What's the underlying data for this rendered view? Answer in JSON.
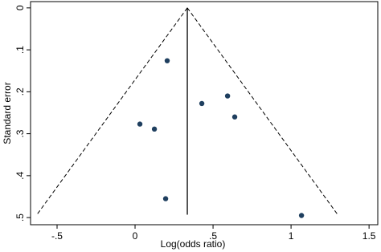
{
  "chart_data": {
    "type": "scatter",
    "x_label": "Log(odds ratio)",
    "y_label": "Standard error",
    "x": [
      0.206,
      0.428,
      0.593,
      0.639,
      0.031,
      0.124,
      0.196,
      1.067
    ],
    "y": [
      0.126,
      0.228,
      0.21,
      0.26,
      0.277,
      0.289,
      0.455,
      0.495
    ],
    "color": "#1f3f5f",
    "xlim": [
      -0.67,
      1.556
    ],
    "ylim": [
      -0.015,
      0.517
    ],
    "y_inverted": true,
    "xticks": [
      {
        "value": -0.5,
        "label": "-.5"
      },
      0,
      {
        "value": 0.5,
        "label": ".5"
      },
      1,
      1.5
    ],
    "yticks": [
      0,
      {
        "value": 0.1,
        "label": ".1"
      },
      {
        "value": 0.2,
        "label": ".2"
      },
      {
        "value": 0.3,
        "label": ".3"
      },
      {
        "value": 0.4,
        "label": ".4"
      },
      {
        "value": 0.5,
        "label": ".5"
      }
    ],
    "reference_line": 0.335,
    "funnel": {
      "se": 0.493,
      "x_low": -0.629,
      "x_high": 1.299
    }
  }
}
